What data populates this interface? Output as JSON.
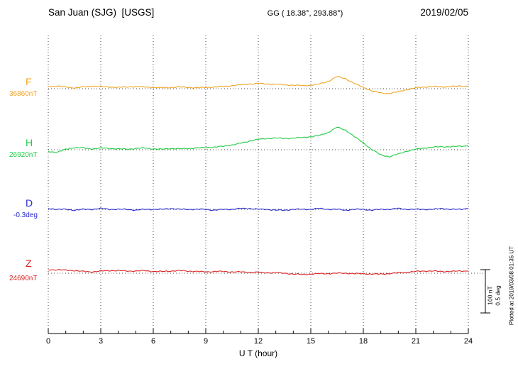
{
  "header": {
    "station": "San Juan (SJG)  [USGS]",
    "coords": "GG ( 18.38°, 293.88°)",
    "date": "2019/02/05"
  },
  "axis": {
    "xlabel": "U T (hour)"
  },
  "scalebar": {
    "nt_label": "100 nT",
    "deg_label": "0.5 deg"
  },
  "footer_rotated": "Plotted at 2019/03/08 01:35 UT",
  "chart_data": {
    "type": "line",
    "title": "San Juan (SJG) [USGS] magnetogram 2019/02/05",
    "xlabel": "U T (hour)",
    "xlim": [
      0,
      24
    ],
    "xticks": [
      0,
      3,
      6,
      9,
      12,
      15,
      18,
      21,
      24
    ],
    "grid": "vertical-dotted plus dotted horizontal baseline per trace",
    "legend_position": "left-of-plot colored labels",
    "scale": {
      "nT_per_div": 100,
      "deg_per_div": 0.5
    },
    "x": [
      0,
      0.5,
      1,
      1.5,
      2,
      2.5,
      3,
      3.5,
      4,
      4.5,
      5,
      5.5,
      6,
      6.5,
      7,
      7.5,
      8,
      8.5,
      9,
      9.5,
      10,
      10.5,
      11,
      11.5,
      12,
      12.5,
      13,
      13.5,
      14,
      14.5,
      15,
      15.5,
      16,
      16.5,
      17,
      17.5,
      18,
      18.5,
      19,
      19.5,
      20,
      20.5,
      21,
      21.5,
      22,
      22.5,
      23,
      23.5,
      24
    ],
    "series": [
      {
        "name": "F",
        "unit": "nT",
        "baseline": 36860,
        "baseline_label": "36860nT",
        "color": "#f0a322",
        "y": [
          36865,
          36866,
          36864,
          36862,
          36864,
          36866,
          36865,
          36864,
          36863,
          36864,
          36865,
          36864,
          36863,
          36862,
          36863,
          36864,
          36863,
          36862,
          36863,
          36864,
          36865,
          36867,
          36869,
          36871,
          36872,
          36871,
          36870,
          36869,
          36868,
          36867,
          36868,
          36871,
          36877,
          36888,
          36883,
          36872,
          36863,
          36855,
          36850,
          36849,
          36853,
          36858,
          36862,
          36864,
          36865,
          36864,
          36865,
          36866,
          36866
        ]
      },
      {
        "name": "H",
        "unit": "nT",
        "baseline": 26920,
        "baseline_label": "26920nT",
        "color": "#1ecc44",
        "y": [
          26916,
          26914,
          26921,
          26925,
          26924,
          26922,
          26924,
          26923,
          26922,
          26921,
          26923,
          26924,
          26922,
          26921,
          26923,
          26922,
          26923,
          26924,
          26925,
          26926,
          26928,
          26931,
          26935,
          26940,
          26944,
          26946,
          26947,
          26946,
          26947,
          26948,
          26950,
          26953,
          26960,
          26972,
          26965,
          26950,
          26936,
          26920,
          26908,
          26904,
          26910,
          26917,
          26921,
          26924,
          26926,
          26927,
          26927,
          26928,
          26929
        ]
      },
      {
        "name": "D",
        "unit": "deg",
        "baseline": -0.3,
        "baseline_label": "-0.3deg",
        "color": "#2a2acc",
        "y": [
          -0.29,
          -0.3,
          -0.3,
          -0.31,
          -0.3,
          -0.3,
          -0.29,
          -0.3,
          -0.3,
          -0.3,
          -0.31,
          -0.3,
          -0.3,
          -0.3,
          -0.29,
          -0.3,
          -0.3,
          -0.3,
          -0.3,
          -0.31,
          -0.3,
          -0.3,
          -0.29,
          -0.29,
          -0.3,
          -0.3,
          -0.31,
          -0.31,
          -0.3,
          -0.3,
          -0.3,
          -0.29,
          -0.3,
          -0.3,
          -0.31,
          -0.3,
          -0.3,
          -0.31,
          -0.3,
          -0.3,
          -0.29,
          -0.3,
          -0.3,
          -0.3,
          -0.3,
          -0.29,
          -0.3,
          -0.3,
          -0.29
        ]
      },
      {
        "name": "Z",
        "unit": "nT",
        "baseline": 24690,
        "baseline_label": "24690nT",
        "color": "#dd2222",
        "y": [
          24698,
          24698,
          24697,
          24696,
          24694,
          24693,
          24695,
          24696,
          24696,
          24695,
          24695,
          24696,
          24694,
          24694,
          24695,
          24696,
          24695,
          24694,
          24693,
          24694,
          24694,
          24693,
          24693,
          24692,
          24692,
          24691,
          24691,
          24690,
          24688,
          24687,
          24688,
          24689,
          24689,
          24690,
          24690,
          24689,
          24689,
          24688,
          24688,
          24689,
          24691,
          24692,
          24694,
          24695,
          24695,
          24694,
          24694,
          24695,
          24695
        ]
      }
    ]
  }
}
